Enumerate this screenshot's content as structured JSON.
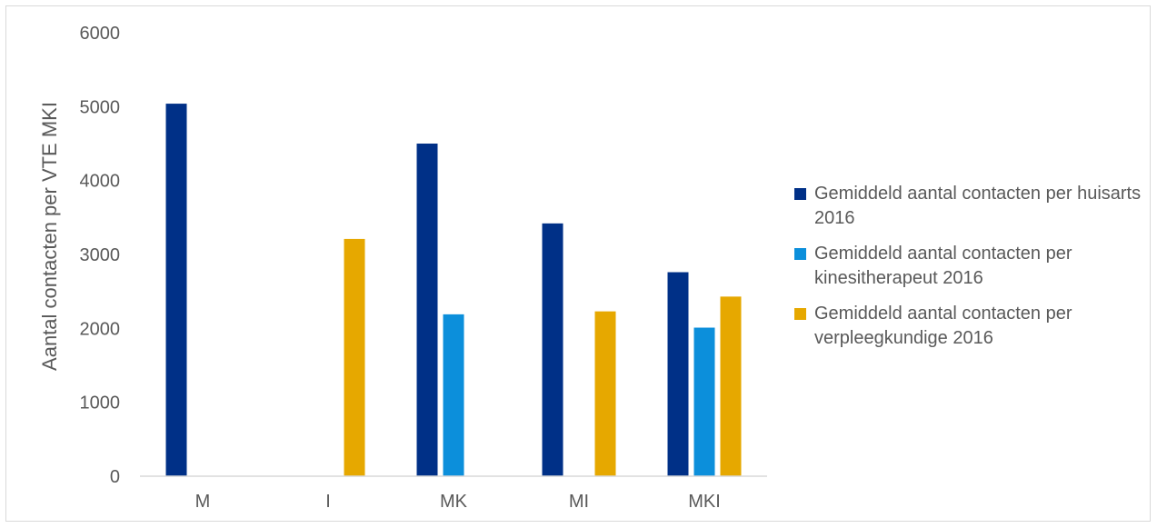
{
  "chart_data": {
    "type": "bar",
    "title": "",
    "xlabel": "",
    "ylabel": "Aantal contacten per VTE MKI",
    "ylim": [
      0,
      6000
    ],
    "yticks": [
      "0",
      "1000",
      "2000",
      "3000",
      "4000",
      "5000",
      "6000"
    ],
    "categories": [
      "M",
      "I",
      "MK",
      "MI",
      "MKI"
    ],
    "grid": false,
    "legend_position": "right",
    "series": [
      {
        "name": "Gemiddeld aantal contacten per huisarts 2016",
        "color": "#003087",
        "values": [
          5040,
          null,
          4500,
          3420,
          2760
        ]
      },
      {
        "name": "Gemiddeld aantal contacten per kinesitherapeut 2016",
        "color": "#0c8fdb",
        "values": [
          null,
          null,
          2190,
          null,
          2010
        ]
      },
      {
        "name": "Gemiddeld aantal contacten per verpleegkundige 2016",
        "color": "#e6a800",
        "values": [
          null,
          3210,
          null,
          2230,
          2430
        ]
      }
    ]
  }
}
